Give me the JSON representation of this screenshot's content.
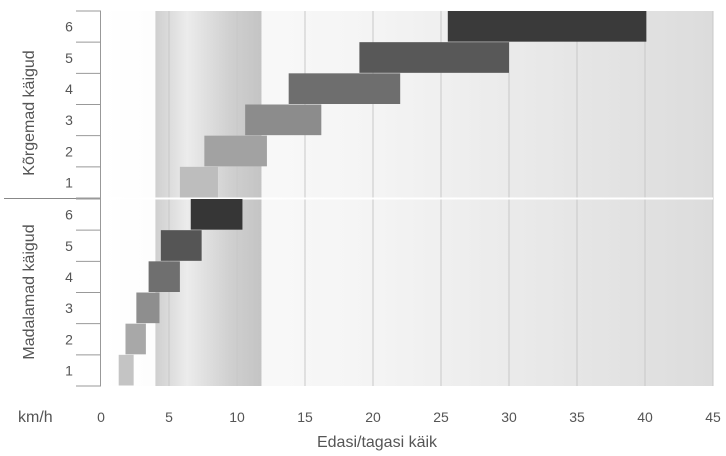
{
  "chart_data": {
    "type": "bar",
    "orientation": "horizontal-range",
    "xlabel": "Edasi/tagasi käik",
    "unit_label": "km/h",
    "xlim": [
      0,
      45
    ],
    "xticks": [
      0,
      5,
      10,
      15,
      20,
      25,
      30,
      35,
      40,
      45
    ],
    "grid": "vertical",
    "highlight_band": [
      4,
      11.8
    ],
    "panels": [
      {
        "name": "Kõrgemad käigud",
        "gears": [
          {
            "gear": "1",
            "min": 5.8,
            "max": 8.6,
            "color": "#bdbdbd"
          },
          {
            "gear": "2",
            "min": 7.6,
            "max": 12.2,
            "color": "#a2a2a2"
          },
          {
            "gear": "3",
            "min": 10.6,
            "max": 16.2,
            "color": "#8c8c8c"
          },
          {
            "gear": "4",
            "min": 13.8,
            "max": 22.0,
            "color": "#6e6e6e"
          },
          {
            "gear": "5",
            "min": 19.0,
            "max": 30.0,
            "color": "#585858"
          },
          {
            "gear": "6",
            "min": 25.5,
            "max": 40.1,
            "color": "#3a3a3a"
          }
        ]
      },
      {
        "name": "Madalamad käigud",
        "gears": [
          {
            "gear": "1",
            "min": 1.3,
            "max": 2.4,
            "color": "#c4c4c4"
          },
          {
            "gear": "2",
            "min": 1.8,
            "max": 3.3,
            "color": "#a8a8a8"
          },
          {
            "gear": "3",
            "min": 2.6,
            "max": 4.3,
            "color": "#8e8e8e"
          },
          {
            "gear": "4",
            "min": 3.5,
            "max": 5.8,
            "color": "#6f6f6f"
          },
          {
            "gear": "5",
            "min": 4.4,
            "max": 7.4,
            "color": "#555555"
          },
          {
            "gear": "6",
            "min": 6.6,
            "max": 10.4,
            "color": "#363636"
          }
        ]
      }
    ]
  }
}
